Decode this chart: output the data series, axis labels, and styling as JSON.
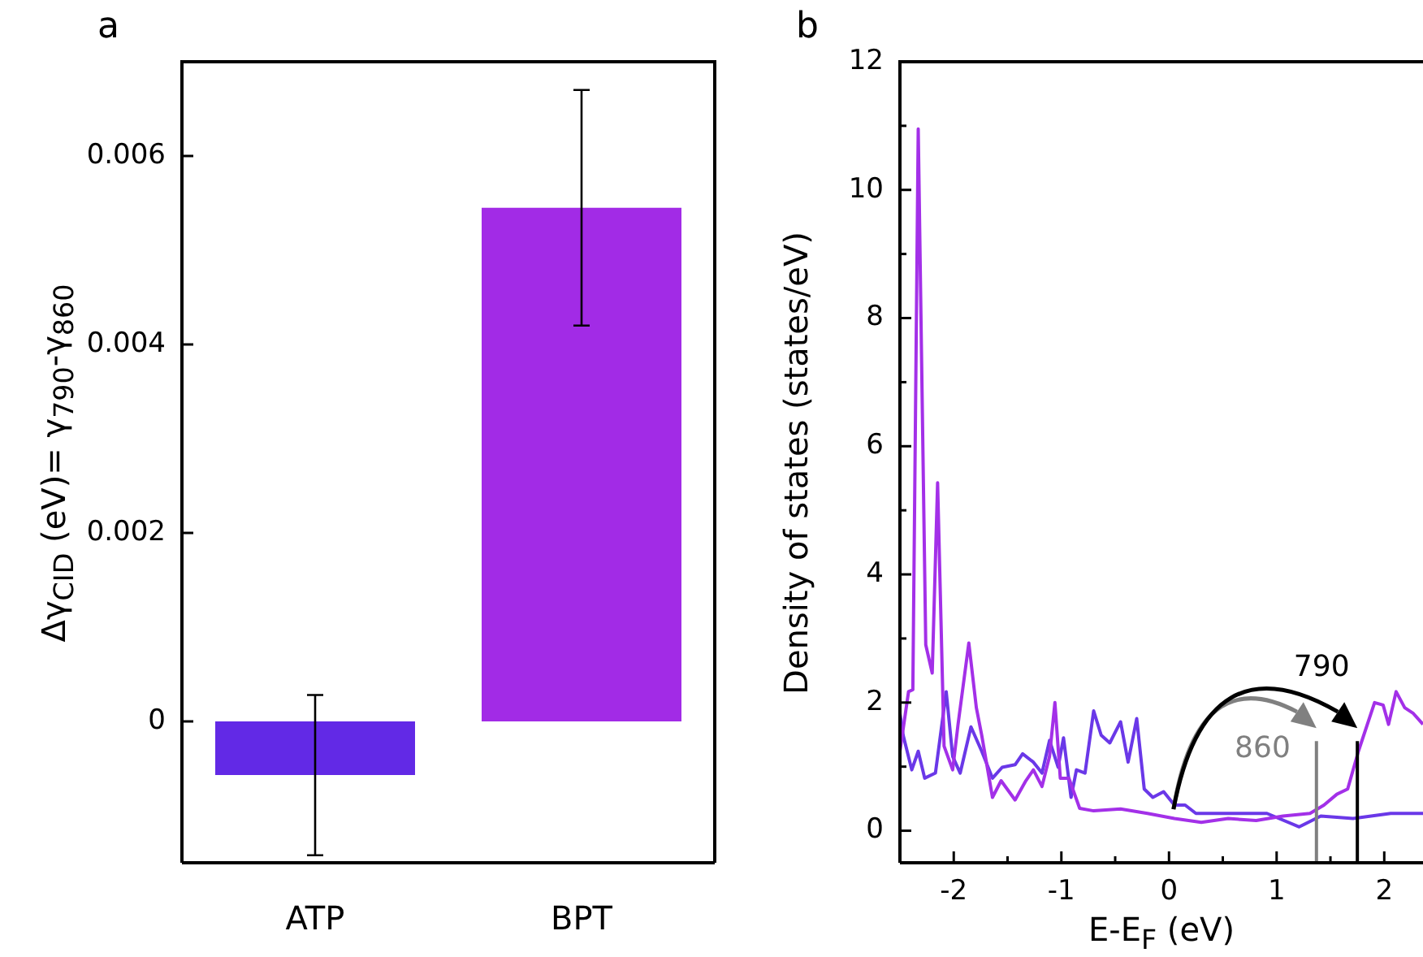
{
  "chart_data": [
    {
      "type": "bar",
      "title": "a",
      "ylabel": "Δγ$_{CID}$ (eV)= γ$_{790}$-γ$_{860}$",
      "categories": [
        "ATP",
        "BPT"
      ],
      "values": [
        -0.00057,
        0.00545
      ],
      "colors": [
        "#6229e6",
        "#a22be6"
      ],
      "errors": [
        0.00085,
        0.00125
      ],
      "ylim": [
        -0.0015,
        0.007
      ],
      "yticks": [
        0,
        0.002,
        0.004,
        0.006
      ],
      "grid": false
    },
    {
      "type": "line",
      "title": "b",
      "xlabel": "E-E$_{F}$ (eV)",
      "ylabel": "Density of states (states/eV)",
      "xlim": [
        -2.5,
        2.36
      ],
      "ylim": [
        -0.5,
        12
      ],
      "xticks": [
        -2,
        {
          "value": -1.5,
          "label": null
        },
        -1,
        {
          "value": -0.5,
          "label": null
        },
        0,
        {
          "value": 0.5,
          "label": null
        },
        1,
        {
          "value": 1.5,
          "label": null
        },
        2
      ],
      "yticks": [
        0,
        {
          "value": 1,
          "label": null
        },
        2,
        {
          "value": 3,
          "label": null
        },
        4,
        {
          "value": 5,
          "label": null
        },
        6,
        {
          "value": 7,
          "label": null
        },
        8,
        {
          "value": 9,
          "label": null
        },
        10,
        {
          "value": 11,
          "label": null
        },
        12
      ],
      "grid": false,
      "marker": "none",
      "line_style": "solid",
      "series": [
        {
          "color": "#a330e8",
          "x": [
            -2.5,
            -2.42,
            -2.38,
            -2.33,
            -2.26,
            -2.2,
            -2.15,
            -2.09,
            -2.01,
            -1.96,
            -1.86,
            -1.79,
            -1.74,
            -1.64,
            -1.56,
            -1.43,
            -1.33,
            -1.26,
            -1.18,
            -1.11,
            -1.06,
            -1.01,
            -0.93,
            -0.83,
            -0.7,
            -0.45,
            -0.2,
            0.05,
            0.3,
            0.55,
            0.81,
            1.06,
            1.31,
            1.44,
            1.56,
            1.66,
            1.76,
            1.91,
            1.99,
            2.04,
            2.11,
            2.19,
            2.27,
            2.36
          ],
          "values": [
            1.24,
            2.17,
            2.2,
            10.95,
            2.9,
            2.46,
            5.43,
            1.32,
            0.95,
            1.66,
            2.93,
            1.92,
            1.49,
            0.52,
            0.78,
            0.48,
            0.78,
            0.95,
            0.69,
            1.16,
            2.0,
            0.82,
            0.82,
            0.35,
            0.31,
            0.34,
            0.27,
            0.19,
            0.13,
            0.19,
            0.16,
            0.23,
            0.27,
            0.4,
            0.57,
            0.65,
            1.24,
            2.0,
            1.96,
            1.66,
            2.17,
            1.92,
            1.83,
            1.66
          ]
        },
        {
          "color": "#6a38e8",
          "x": [
            -2.5,
            -2.47,
            -2.39,
            -2.33,
            -2.27,
            -2.17,
            -2.07,
            -2.01,
            -1.94,
            -1.84,
            -1.74,
            -1.64,
            -1.55,
            -1.43,
            -1.36,
            -1.26,
            -1.18,
            -1.11,
            -1.03,
            -0.98,
            -0.91,
            -0.86,
            -0.78,
            -0.7,
            -0.63,
            -0.55,
            -0.45,
            -0.38,
            -0.3,
            -0.23,
            -0.15,
            -0.05,
            0.05,
            0.15,
            0.25,
            0.55,
            0.76,
            0.91,
            1.21,
            1.41,
            1.71,
            2.06,
            2.36
          ],
          "values": [
            1.83,
            1.49,
            0.95,
            1.24,
            0.82,
            0.9,
            2.17,
            1.16,
            0.9,
            1.62,
            1.24,
            0.82,
            0.99,
            1.03,
            1.2,
            1.07,
            0.9,
            1.41,
            0.99,
            1.45,
            0.52,
            0.95,
            0.9,
            1.87,
            1.49,
            1.37,
            1.7,
            1.07,
            1.75,
            0.65,
            0.52,
            0.61,
            0.4,
            0.4,
            0.27,
            0.27,
            0.27,
            0.27,
            0.06,
            0.23,
            0.19,
            0.27,
            0.27
          ]
        }
      ],
      "annotations": [
        {
          "text": "860",
          "x": 1.37,
          "y": 1.4
        },
        {
          "text": "790",
          "x": 1.75,
          "y": 1.4
        }
      ],
      "ref_lines": [
        {
          "axis": "x",
          "value": 1.37,
          "color": "#808080"
        },
        {
          "axis": "x",
          "value": 1.75,
          "color": "#000000"
        }
      ]
    }
  ]
}
